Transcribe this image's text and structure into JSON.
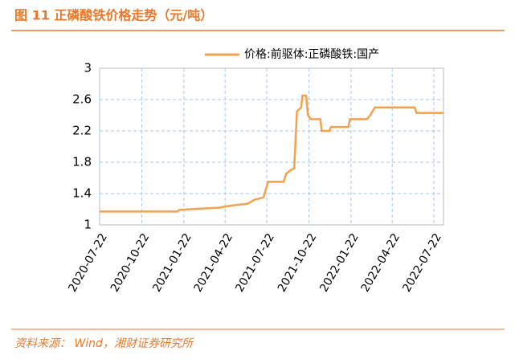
{
  "chart_data": {
    "type": "line",
    "title": "图 11 正磷酸铁价格走势（元/吨）",
    "source": "资料来源： Wind，湘财证券研究所",
    "x": [
      "2020-07-22",
      "2021-01-08",
      "2021-01-12",
      "2021-02-05",
      "2021-04-08",
      "2021-05-10",
      "2021-06-10",
      "2021-06-25",
      "2021-07-15",
      "2021-07-25",
      "2021-08-28",
      "2021-09-02",
      "2021-09-12",
      "2021-09-20",
      "2021-09-26",
      "2021-10-05",
      "2021-10-08",
      "2021-10-16",
      "2021-10-20",
      "2021-10-26",
      "2021-11-16",
      "2021-11-19",
      "2021-12-06",
      "2021-12-09",
      "2022-01-16",
      "2022-01-20",
      "2022-02-26",
      "2022-03-05",
      "2022-03-15",
      "2022-06-10",
      "2022-06-14",
      "2022-08-12"
    ],
    "series": [
      {
        "name": "价格:前驱体:正磷酸铁:国产",
        "color": "#f4a14d",
        "values": [
          1.17,
          1.17,
          1.19,
          1.2,
          1.22,
          1.25,
          1.27,
          1.32,
          1.35,
          1.55,
          1.55,
          1.65,
          1.7,
          1.72,
          2.45,
          2.5,
          2.65,
          2.65,
          2.4,
          2.35,
          2.35,
          2.2,
          2.2,
          2.25,
          2.25,
          2.35,
          2.35,
          2.4,
          2.5,
          2.5,
          2.43,
          2.43
        ]
      }
    ],
    "xlim": [
      "2020-07-22",
      "2022-08-12"
    ],
    "xticks": [
      "2020-07-22",
      "2020-10-22",
      "2021-01-22",
      "2021-04-22",
      "2021-07-22",
      "2021-10-22",
      "2022-01-22",
      "2022-04-22",
      "2022-07-22"
    ],
    "ylim": [
      1,
      3
    ],
    "yticks": [
      1,
      1.4,
      1.8,
      2.2,
      2.6,
      3
    ],
    "grid": true
  }
}
